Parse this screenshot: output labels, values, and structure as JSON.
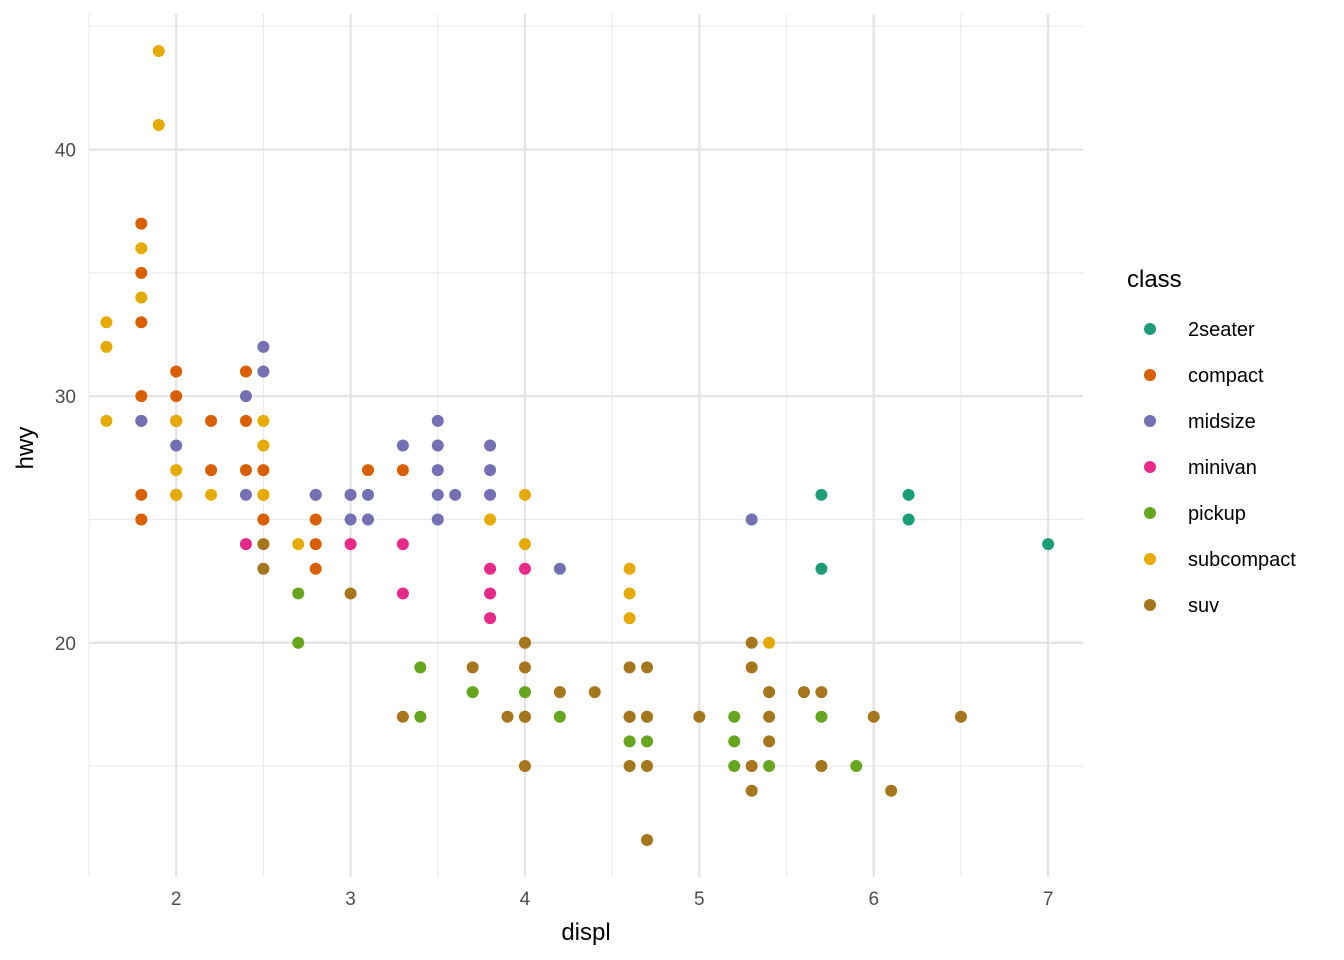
{
  "chart_data": {
    "type": "scatter",
    "title": "",
    "xlabel": "displ",
    "ylabel": "hwy",
    "xlim": [
      1.5,
      7.2
    ],
    "ylim": [
      10.5,
      45.5
    ],
    "x_ticks": [
      2,
      3,
      4,
      5,
      6,
      7
    ],
    "y_ticks": [
      20,
      30,
      40
    ],
    "grid": true,
    "legend": {
      "title": "class",
      "position": "right",
      "entries": [
        "2seater",
        "compact",
        "midsize",
        "minivan",
        "pickup",
        "subcompact",
        "suv"
      ]
    },
    "colors": {
      "2seater": "#1b9e77",
      "compact": "#d95f02",
      "midsize": "#7570b3",
      "minivan": "#e7298a",
      "pickup": "#66a61e",
      "subcompact": "#e6ab02",
      "suv": "#a6761d"
    },
    "series": [
      {
        "name": "2seater",
        "points": [
          [
            5.7,
            26
          ],
          [
            5.7,
            23
          ],
          [
            6.2,
            26
          ],
          [
            6.2,
            25
          ],
          [
            7.0,
            24
          ]
        ]
      },
      {
        "name": "compact",
        "points": [
          [
            1.8,
            37
          ],
          [
            1.8,
            35
          ],
          [
            1.8,
            33
          ],
          [
            1.8,
            30
          ],
          [
            1.8,
            29
          ],
          [
            1.8,
            26
          ],
          [
            1.8,
            25
          ],
          [
            2.0,
            31
          ],
          [
            2.0,
            30
          ],
          [
            2.0,
            29
          ],
          [
            2.0,
            26
          ],
          [
            2.2,
            29
          ],
          [
            2.2,
            27
          ],
          [
            2.4,
            31
          ],
          [
            2.4,
            29
          ],
          [
            2.4,
            27
          ],
          [
            2.5,
            27
          ],
          [
            2.5,
            26
          ],
          [
            2.5,
            25
          ],
          [
            2.8,
            26
          ],
          [
            2.8,
            25
          ],
          [
            2.8,
            24
          ],
          [
            2.8,
            23
          ],
          [
            3.0,
            26
          ],
          [
            3.1,
            27
          ],
          [
            3.3,
            27
          ]
        ]
      },
      {
        "name": "midsize",
        "points": [
          [
            1.8,
            29
          ],
          [
            2.0,
            29
          ],
          [
            2.0,
            28
          ],
          [
            2.4,
            30
          ],
          [
            2.4,
            26
          ],
          [
            2.5,
            32
          ],
          [
            2.5,
            31
          ],
          [
            2.8,
            26
          ],
          [
            3.0,
            25
          ],
          [
            3.0,
            26
          ],
          [
            3.1,
            26
          ],
          [
            3.1,
            25
          ],
          [
            3.3,
            28
          ],
          [
            3.5,
            29
          ],
          [
            3.5,
            28
          ],
          [
            3.5,
            27
          ],
          [
            3.5,
            26
          ],
          [
            3.5,
            25
          ],
          [
            3.6,
            26
          ],
          [
            3.8,
            28
          ],
          [
            3.8,
            27
          ],
          [
            3.8,
            26
          ],
          [
            4.2,
            23
          ],
          [
            5.3,
            25
          ]
        ]
      },
      {
        "name": "minivan",
        "points": [
          [
            2.4,
            24
          ],
          [
            3.0,
            24
          ],
          [
            3.3,
            24
          ],
          [
            3.3,
            22
          ],
          [
            3.8,
            23
          ],
          [
            3.8,
            22
          ],
          [
            3.8,
            21
          ],
          [
            4.0,
            23
          ]
        ]
      },
      {
        "name": "pickup",
        "points": [
          [
            2.7,
            22
          ],
          [
            2.7,
            20
          ],
          [
            3.4,
            19
          ],
          [
            3.4,
            17
          ],
          [
            3.7,
            18
          ],
          [
            4.0,
            20
          ],
          [
            4.0,
            18
          ],
          [
            4.0,
            17
          ],
          [
            4.2,
            17
          ],
          [
            4.6,
            17
          ],
          [
            4.6,
            16
          ],
          [
            4.7,
            17
          ],
          [
            4.7,
            16
          ],
          [
            5.2,
            17
          ],
          [
            5.2,
            16
          ],
          [
            5.2,
            15
          ],
          [
            5.4,
            15
          ],
          [
            5.7,
            17
          ],
          [
            5.9,
            15
          ]
        ]
      },
      {
        "name": "subcompact",
        "points": [
          [
            1.6,
            33
          ],
          [
            1.6,
            32
          ],
          [
            1.6,
            29
          ],
          [
            1.8,
            36
          ],
          [
            1.8,
            34
          ],
          [
            1.9,
            44
          ],
          [
            1.9,
            41
          ],
          [
            2.0,
            29
          ],
          [
            2.0,
            27
          ],
          [
            2.0,
            26
          ],
          [
            2.2,
            26
          ],
          [
            2.5,
            29
          ],
          [
            2.5,
            28
          ],
          [
            2.5,
            26
          ],
          [
            2.7,
            24
          ],
          [
            3.8,
            25
          ],
          [
            4.0,
            26
          ],
          [
            4.0,
            24
          ],
          [
            4.6,
            23
          ],
          [
            4.6,
            22
          ],
          [
            4.6,
            21
          ],
          [
            5.4,
            20
          ]
        ]
      },
      {
        "name": "suv",
        "points": [
          [
            2.5,
            24
          ],
          [
            2.5,
            23
          ],
          [
            3.0,
            22
          ],
          [
            3.3,
            17
          ],
          [
            3.7,
            19
          ],
          [
            3.9,
            17
          ],
          [
            4.0,
            20
          ],
          [
            4.0,
            19
          ],
          [
            4.0,
            17
          ],
          [
            4.0,
            15
          ],
          [
            4.2,
            18
          ],
          [
            4.4,
            18
          ],
          [
            4.6,
            19
          ],
          [
            4.6,
            17
          ],
          [
            4.6,
            15
          ],
          [
            4.7,
            19
          ],
          [
            4.7,
            17
          ],
          [
            4.7,
            15
          ],
          [
            4.7,
            12
          ],
          [
            5.0,
            17
          ],
          [
            5.3,
            20
          ],
          [
            5.3,
            19
          ],
          [
            5.3,
            15
          ],
          [
            5.3,
            14
          ],
          [
            5.4,
            18
          ],
          [
            5.4,
            17
          ],
          [
            5.4,
            16
          ],
          [
            5.6,
            18
          ],
          [
            5.7,
            18
          ],
          [
            5.7,
            15
          ],
          [
            6.0,
            17
          ],
          [
            6.1,
            14
          ],
          [
            6.5,
            17
          ]
        ]
      }
    ]
  }
}
